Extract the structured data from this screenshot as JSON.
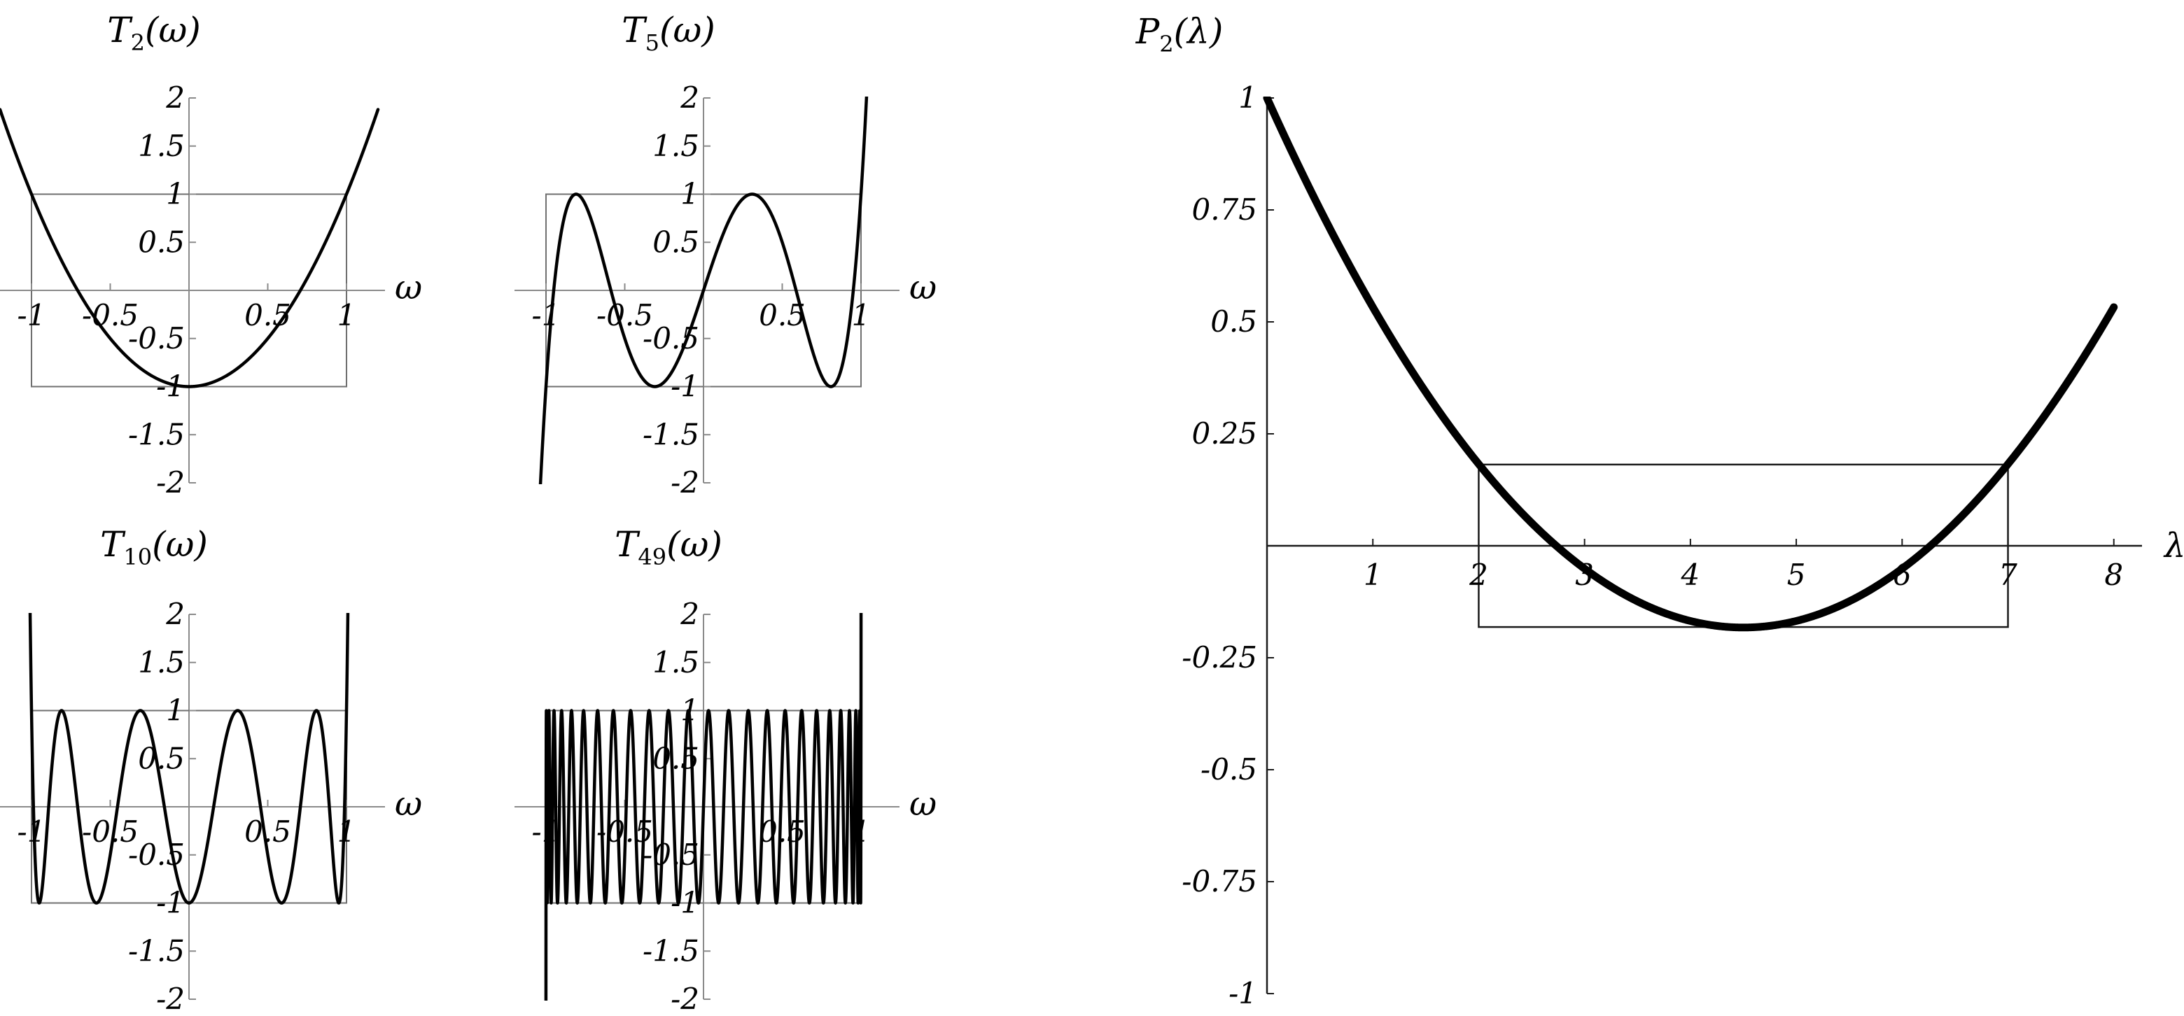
{
  "chart_data": [
    {
      "type": "line",
      "title": "T2(ω)",
      "title_main": "T",
      "title_sub": "2",
      "title_tail": "(ω)",
      "xlabel": "ω",
      "function": "chebyshev",
      "degree": 2,
      "x_domain": [
        -1.2,
        1.2
      ],
      "xlim": [
        -1.2,
        1.2
      ],
      "ylim": [
        -2,
        2
      ],
      "x_ticks": [
        {
          "value": -1,
          "label": "-1"
        },
        {
          "value": -0.5,
          "label": "-0.5"
        },
        {
          "value": 0.5,
          "label": "0.5"
        },
        {
          "value": 1,
          "label": "1"
        }
      ],
      "y_ticks": [
        {
          "value": 2,
          "label": "2"
        },
        {
          "value": 1.5,
          "label": "1.5"
        },
        {
          "value": 1,
          "label": "1"
        },
        {
          "value": 0.5,
          "label": "0.5"
        },
        {
          "value": -0.5,
          "label": "-0.5"
        },
        {
          "value": -1,
          "label": "-1"
        },
        {
          "value": -1.5,
          "label": "-1.5"
        },
        {
          "value": -2,
          "label": "-2"
        }
      ],
      "box": {
        "x": [
          -1,
          1
        ],
        "y": [
          -1,
          1
        ]
      },
      "grid": false
    },
    {
      "type": "line",
      "title": "T5(ω)",
      "title_main": "T",
      "title_sub": "5",
      "title_tail": "(ω)",
      "xlabel": "ω",
      "function": "chebyshev",
      "degree": 5,
      "x_domain": [
        -1.2,
        1.2
      ],
      "xlim": [
        -1.2,
        1.2
      ],
      "ylim": [
        -2,
        2
      ],
      "x_ticks": [
        {
          "value": -1,
          "label": "-1"
        },
        {
          "value": -0.5,
          "label": "-0.5"
        },
        {
          "value": 0.5,
          "label": "0.5"
        },
        {
          "value": 1,
          "label": "1"
        }
      ],
      "y_ticks": [
        {
          "value": 2,
          "label": "2"
        },
        {
          "value": 1.5,
          "label": "1.5"
        },
        {
          "value": 1,
          "label": "1"
        },
        {
          "value": 0.5,
          "label": "0.5"
        },
        {
          "value": -0.5,
          "label": "-0.5"
        },
        {
          "value": -1,
          "label": "-1"
        },
        {
          "value": -1.5,
          "label": "-1.5"
        },
        {
          "value": -2,
          "label": "-2"
        }
      ],
      "box": {
        "x": [
          -1,
          1
        ],
        "y": [
          -1,
          1
        ]
      },
      "grid": false
    },
    {
      "type": "line",
      "title": "T10(ω)",
      "title_main": "T",
      "title_sub": "10",
      "title_tail": "(ω)",
      "xlabel": "ω",
      "function": "chebyshev",
      "degree": 10,
      "x_domain": [
        -1.2,
        1.2
      ],
      "xlim": [
        -1.2,
        1.2
      ],
      "ylim": [
        -2,
        2
      ],
      "x_ticks": [
        {
          "value": -1,
          "label": "-1"
        },
        {
          "value": -0.5,
          "label": "-0.5"
        },
        {
          "value": 0.5,
          "label": "0.5"
        },
        {
          "value": 1,
          "label": "1"
        }
      ],
      "y_ticks": [
        {
          "value": 2,
          "label": "2"
        },
        {
          "value": 1.5,
          "label": "1.5"
        },
        {
          "value": 1,
          "label": "1"
        },
        {
          "value": 0.5,
          "label": "0.5"
        },
        {
          "value": -0.5,
          "label": "-0.5"
        },
        {
          "value": -1,
          "label": "-1"
        },
        {
          "value": -1.5,
          "label": "-1.5"
        },
        {
          "value": -2,
          "label": "-2"
        }
      ],
      "box": {
        "x": [
          -1,
          1
        ],
        "y": [
          -1,
          1
        ]
      },
      "grid": false
    },
    {
      "type": "line",
      "title": "T49(ω)",
      "title_main": "T",
      "title_sub": "49",
      "title_tail": "(ω)",
      "xlabel": "ω",
      "function": "chebyshev",
      "degree": 49,
      "x_domain": [
        -1.2,
        1.2
      ],
      "xlim": [
        -1.2,
        1.2
      ],
      "ylim": [
        -2,
        2
      ],
      "x_ticks": [
        {
          "value": -1,
          "label": "-1"
        },
        {
          "value": -0.5,
          "label": "-0.5"
        },
        {
          "value": 0.5,
          "label": "0.5"
        },
        {
          "value": 1,
          "label": "1"
        }
      ],
      "y_ticks": [
        {
          "value": 2,
          "label": "2"
        },
        {
          "value": 1.5,
          "label": "1.5"
        },
        {
          "value": 1,
          "label": "1"
        },
        {
          "value": 0.5,
          "label": "0.5"
        },
        {
          "value": -0.5,
          "label": "-0.5"
        },
        {
          "value": -1,
          "label": "-1"
        },
        {
          "value": -1.5,
          "label": "-1.5"
        },
        {
          "value": -2,
          "label": "-2"
        }
      ],
      "box": {
        "x": [
          -1,
          1
        ],
        "y": [
          -1,
          1
        ]
      },
      "grid": false
    },
    {
      "type": "line",
      "title": "P2(λ)",
      "title_main": "P",
      "title_sub": "2",
      "title_tail": "(λ)",
      "xlabel": "λ",
      "function": "scaled_chebyshev",
      "degree": 2,
      "interval": [
        2,
        7
      ],
      "x_domain": [
        0,
        8
      ],
      "xlim": [
        0,
        8.2
      ],
      "ylim": [
        -1,
        1
      ],
      "x_ticks": [
        {
          "value": 1,
          "label": "1"
        },
        {
          "value": 2,
          "label": "2"
        },
        {
          "value": 3,
          "label": "3"
        },
        {
          "value": 4,
          "label": "4"
        },
        {
          "value": 5,
          "label": "5"
        },
        {
          "value": 6,
          "label": "6"
        },
        {
          "value": 7,
          "label": "7"
        },
        {
          "value": 8,
          "label": "8"
        }
      ],
      "y_ticks": [
        {
          "value": 1,
          "label": "1"
        },
        {
          "value": 0.75,
          "label": "0.75"
        },
        {
          "value": 0.5,
          "label": "0.5"
        },
        {
          "value": 0.25,
          "label": "0.25"
        },
        {
          "value": -0.25,
          "label": "-0.25"
        },
        {
          "value": -0.5,
          "label": "-0.5"
        },
        {
          "value": -0.75,
          "label": "-0.75"
        },
        {
          "value": -1,
          "label": "-1"
        }
      ],
      "box": {
        "x": [
          2,
          7
        ],
        "y": [
          -0.1814,
          0.1814
        ]
      },
      "grid": false
    }
  ]
}
